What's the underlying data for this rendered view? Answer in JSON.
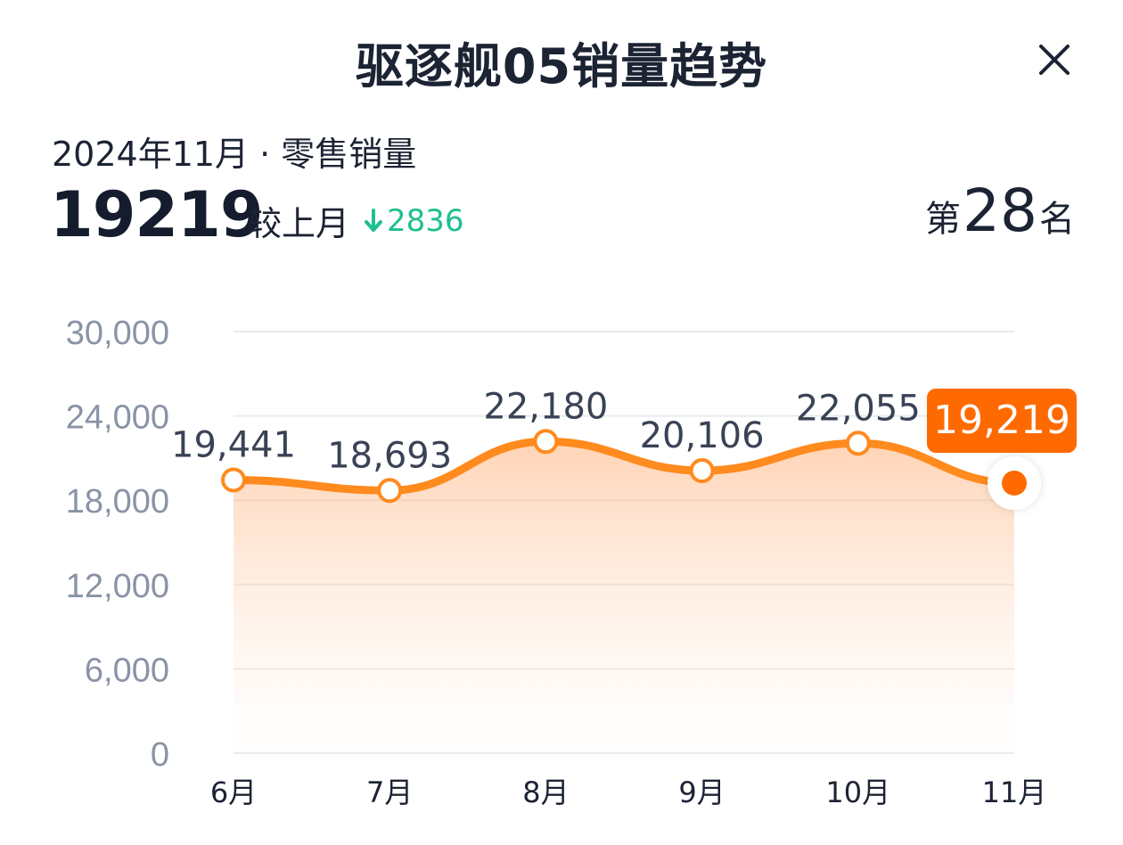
{
  "header": {
    "title": "驱逐舰05销量趋势"
  },
  "summary": {
    "period": "2024年11月 · 零售销量",
    "value": "19219",
    "compare_label": "较上月",
    "delta": "2836",
    "delta_direction": "down",
    "rank_prefix": "第",
    "rank": "28",
    "rank_suffix": "名"
  },
  "colors": {
    "line": "#ff8a1e",
    "accent": "#ff6a00",
    "down": "#1fbf8f",
    "axis_text": "#8a93a6"
  },
  "chart_data": {
    "type": "line",
    "categories": [
      "6月",
      "7月",
      "8月",
      "9月",
      "10月",
      "11月"
    ],
    "values": [
      19441,
      18693,
      22180,
      20106,
      22055,
      19219
    ],
    "value_labels": [
      "19,441",
      "18,693",
      "22,180",
      "20,106",
      "22,055",
      "19,219"
    ],
    "y_ticks": [
      "30,000",
      "24,000",
      "18,000",
      "12,000",
      "6,000",
      "0"
    ],
    "ylim": [
      0,
      30000
    ],
    "grid": true,
    "highlight_index": 5
  }
}
